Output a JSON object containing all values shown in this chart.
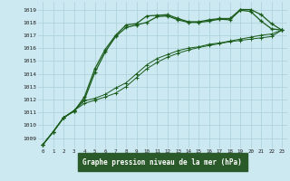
{
  "title": "Graphe pression niveau de la mer (hPa)",
  "background_color": "#cce8f0",
  "grid_color": "#aacfdb",
  "line_color": "#1a5c1a",
  "xlabel_bg": "#2a5a2a",
  "xlabel_fg": "#ffffff",
  "xlim": [
    -0.5,
    23.5
  ],
  "ylim": [
    1008.2,
    1019.6
  ],
  "xticks": [
    0,
    1,
    2,
    3,
    4,
    5,
    6,
    7,
    8,
    9,
    10,
    11,
    12,
    13,
    14,
    15,
    16,
    17,
    18,
    19,
    20,
    21,
    22,
    23
  ],
  "yticks": [
    1009,
    1010,
    1011,
    1012,
    1013,
    1014,
    1015,
    1016,
    1017,
    1018,
    1019
  ],
  "line1_x": [
    0,
    1,
    2,
    3,
    4,
    5,
    6,
    7,
    8,
    9,
    10,
    11,
    12,
    13,
    14,
    15,
    16,
    17,
    18,
    19,
    20,
    21,
    22,
    23
  ],
  "line1_y": [
    1008.5,
    1009.5,
    1010.6,
    1011.1,
    1012.2,
    1014.4,
    1015.9,
    1017.0,
    1017.8,
    1017.9,
    1018.5,
    1018.55,
    1018.6,
    1018.3,
    1018.05,
    1018.05,
    1018.2,
    1018.3,
    1018.3,
    1019.0,
    1019.0,
    1018.6,
    1017.9,
    1017.4
  ],
  "line2_x": [
    0,
    1,
    2,
    3,
    4,
    5,
    6,
    7,
    8,
    9,
    10,
    11,
    12,
    13,
    14,
    15,
    16,
    17,
    18,
    19,
    20,
    21,
    22,
    23
  ],
  "line2_y": [
    1008.5,
    1009.5,
    1010.6,
    1011.1,
    1012.0,
    1014.1,
    1015.7,
    1016.9,
    1017.6,
    1017.8,
    1018.0,
    1018.45,
    1018.5,
    1018.2,
    1018.0,
    1018.0,
    1018.1,
    1018.25,
    1018.2,
    1018.95,
    1018.85,
    1018.1,
    1017.5,
    1017.4
  ],
  "line3_x": [
    0,
    1,
    2,
    3,
    4,
    5,
    6,
    7,
    8,
    9,
    10,
    11,
    12,
    13,
    14,
    15,
    16,
    17,
    18,
    19,
    20,
    21,
    22,
    23
  ],
  "line3_y": [
    1008.5,
    1009.5,
    1010.6,
    1011.15,
    1011.9,
    1012.1,
    1012.4,
    1012.9,
    1013.3,
    1014.0,
    1014.7,
    1015.2,
    1015.5,
    1015.8,
    1016.0,
    1016.1,
    1016.3,
    1016.4,
    1016.55,
    1016.7,
    1016.85,
    1017.0,
    1017.1,
    1017.4
  ],
  "line4_x": [
    0,
    1,
    2,
    3,
    4,
    5,
    6,
    7,
    8,
    9,
    10,
    11,
    12,
    13,
    14,
    15,
    16,
    17,
    18,
    19,
    20,
    21,
    22,
    23
  ],
  "line4_y": [
    1008.5,
    1009.5,
    1010.6,
    1011.15,
    1011.7,
    1011.95,
    1012.2,
    1012.5,
    1013.0,
    1013.7,
    1014.4,
    1014.9,
    1015.3,
    1015.6,
    1015.85,
    1016.05,
    1016.2,
    1016.35,
    1016.5,
    1016.6,
    1016.7,
    1016.8,
    1016.9,
    1017.4
  ]
}
